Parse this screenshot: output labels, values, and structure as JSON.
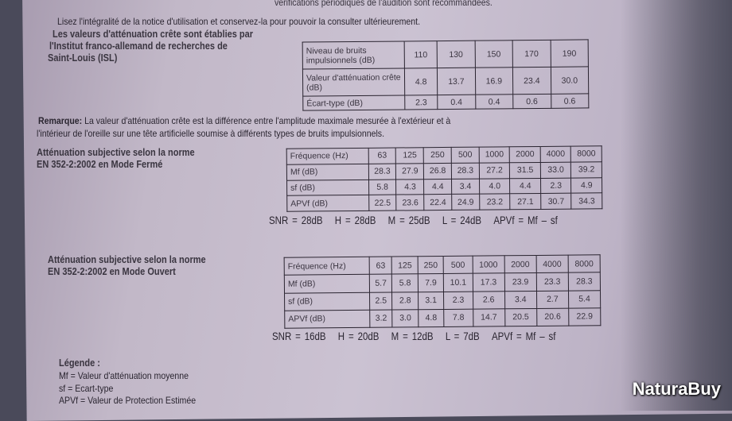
{
  "top_cut_line": "vérifications périodiques de l'audition sont recommandées.",
  "intro": "Lisez l'intégralité de la notice d'utilisation et conservez-la pour pouvoir la consulter ultérieurement.",
  "isl_heading": [
    "Les valeurs d'atténuation crête sont établies par",
    "l'Institut franco-allemand de recherches de",
    "Saint-Louis (ISL)"
  ],
  "peak_table": {
    "rows": [
      {
        "label": "Niveau de bruits impulsionnels (dB)",
        "values": [
          "110",
          "130",
          "150",
          "170",
          "190"
        ]
      },
      {
        "label": "Valeur d'atténuation crête (dB)",
        "values": [
          "4.8",
          "13.7",
          "16.9",
          "23.4",
          "30.0"
        ]
      },
      {
        "label": "Écart-type (dB)",
        "values": [
          "2.3",
          "0.4",
          "0.4",
          "0.6",
          "0.6"
        ]
      }
    ]
  },
  "remark": {
    "label": "Remarque:",
    "text1": " La valeur d'atténuation crête est la différence entre l'amplitude maximale mesurée à l'extérieur et à",
    "text2": "l'intérieur de l'oreille sur une tête artificielle soumise à différents types de bruits impulsionnels."
  },
  "closed": {
    "heading": [
      "Atténuation subjective selon la norme",
      "EN 352-2:2002 en Mode Fermé"
    ],
    "rows": [
      {
        "label": "Fréquence (Hz)",
        "values": [
          "63",
          "125",
          "250",
          "500",
          "1000",
          "2000",
          "4000",
          "8000"
        ]
      },
      {
        "label": "Mf (dB)",
        "values": [
          "28.3",
          "27.9",
          "26.8",
          "28.3",
          "27.2",
          "31.5",
          "33.0",
          "39.2"
        ]
      },
      {
        "label": "sf (dB)",
        "values": [
          "5.8",
          "4.3",
          "4.4",
          "3.4",
          "4.0",
          "4.4",
          "2.3",
          "4.9"
        ]
      },
      {
        "label": "APVf (dB)",
        "values": [
          "22.5",
          "23.6",
          "22.4",
          "24.9",
          "23.2",
          "27.1",
          "30.7",
          "34.3"
        ]
      }
    ],
    "formula": [
      "SNR = 28dB",
      "H = 28dB",
      "M = 25dB",
      "L = 24dB",
      "APVf = Mf – sf"
    ]
  },
  "open": {
    "heading": [
      "Atténuation subjective selon la norme",
      "EN 352-2:2002 en Mode Ouvert"
    ],
    "rows": [
      {
        "label": "Fréquence (Hz)",
        "values": [
          "63",
          "125",
          "250",
          "500",
          "1000",
          "2000",
          "4000",
          "8000"
        ]
      },
      {
        "label": "Mf (dB)",
        "values": [
          "5.7",
          "5.8",
          "7.9",
          "10.1",
          "17.3",
          "23.9",
          "23.3",
          "28.3"
        ]
      },
      {
        "label": "sf (dB)",
        "values": [
          "2.5",
          "2.8",
          "3.1",
          "2.3",
          "2.6",
          "3.4",
          "2.7",
          "5.4"
        ]
      },
      {
        "label": "APVf (dB)",
        "values": [
          "3.2",
          "3.0",
          "4.8",
          "7.8",
          "14.7",
          "20.5",
          "20.6",
          "22.9"
        ]
      }
    ],
    "formula": [
      "SNR = 16dB",
      "H = 20dB",
      "M = 12dB",
      "L = 7dB",
      "APVf = Mf – sf"
    ]
  },
  "legend": {
    "title": "Légende :",
    "items": [
      "Mf = Valeur d'atténuation moyenne",
      "sf = Ecart-type",
      "APVf = Valeur de Protection Estimée"
    ]
  },
  "watermark": "NaturaBuy"
}
